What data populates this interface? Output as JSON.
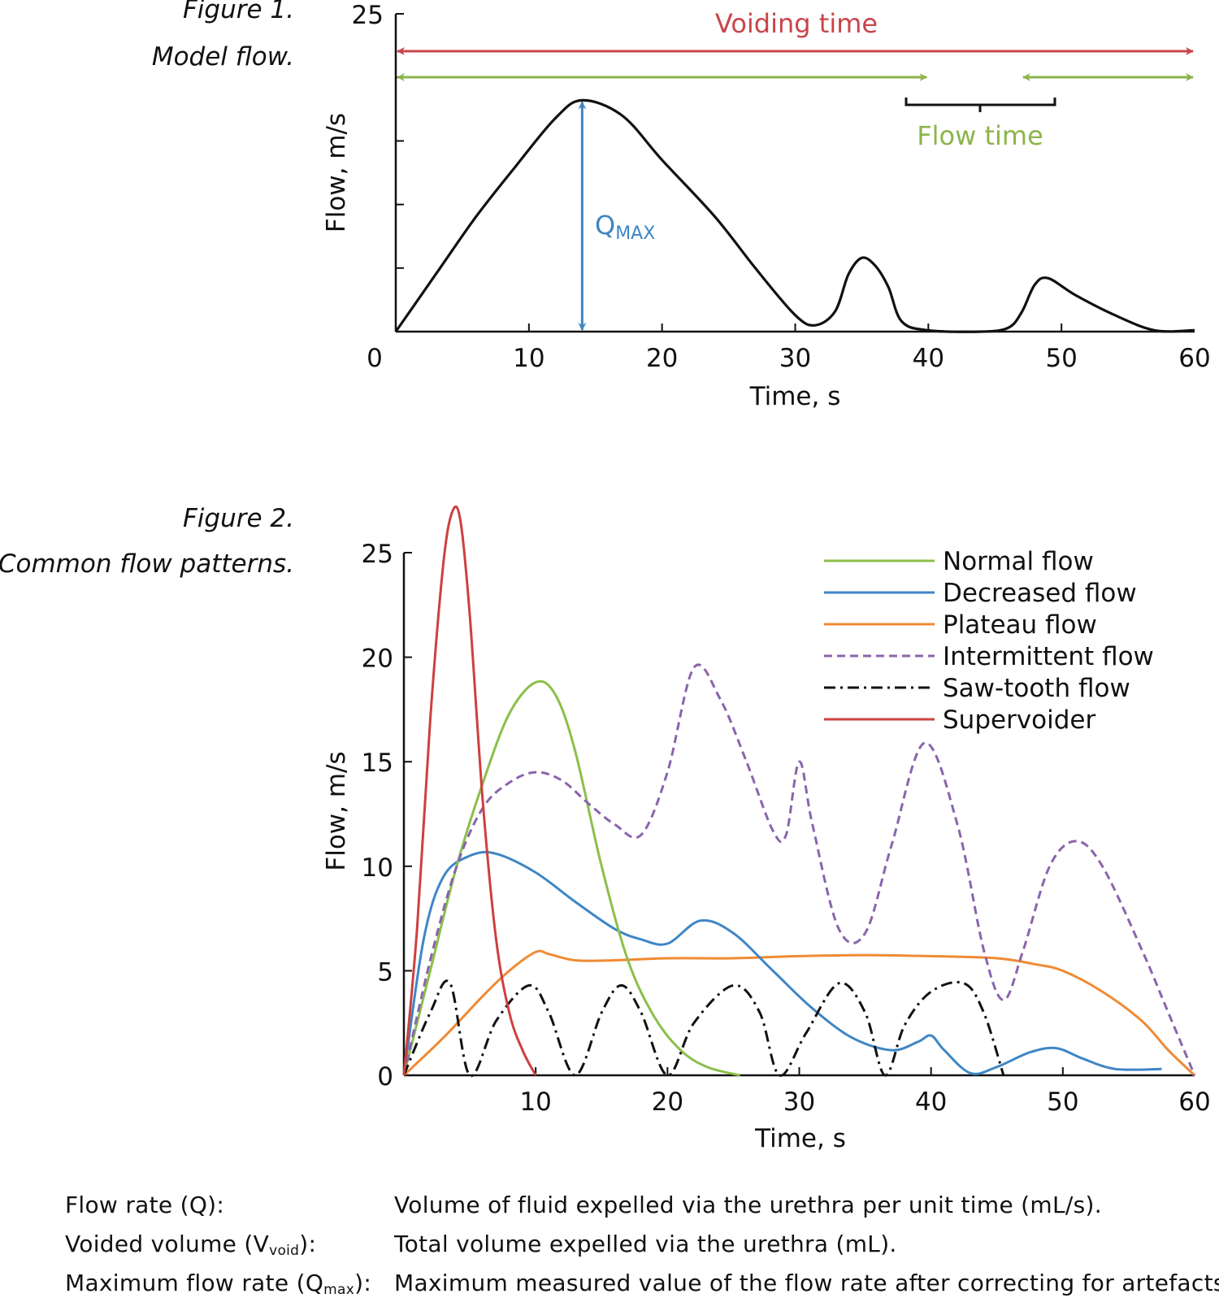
{
  "figure1": {
    "caption_number": "Figure 1.",
    "caption_title": "Model flow.",
    "chart_data": {
      "type": "line",
      "xlabel": "Time, s",
      "ylabel": "Flow, m/s",
      "xlim": [
        0,
        60
      ],
      "ylim": [
        0,
        25
      ],
      "x_ticks": [
        "0",
        "10",
        "20",
        "30",
        "40",
        "50",
        "60"
      ],
      "y_ticks": [
        "25"
      ],
      "series": [
        {
          "x": [
            0,
            3,
            6,
            9,
            12,
            14,
            17,
            20,
            24,
            27,
            30,
            31.5,
            33,
            34,
            35,
            36,
            37,
            38,
            40,
            44,
            46,
            47,
            48,
            49,
            51,
            54,
            57,
            60
          ],
          "y": [
            0,
            4.5,
            9,
            13,
            16.8,
            18.2,
            17,
            13.5,
            9,
            5,
            1.3,
            0.5,
            1.6,
            4.5,
            5.8,
            5.2,
            3.5,
            0.8,
            0.1,
            0,
            0.3,
            1.5,
            3.7,
            4.2,
            2.9,
            1.3,
            0.1,
            0.1
          ]
        }
      ],
      "annotations": [
        {
          "label": "Voiding time",
          "x_start": 0,
          "x_end": 60,
          "color": "#c8454a"
        },
        {
          "label": "Flow time",
          "segments": [
            [
              0,
              40
            ],
            [
              47,
              60
            ]
          ],
          "color": "#8cb44a"
        },
        {
          "label": "Q",
          "label_sub": "MAX",
          "x": 14,
          "y_start": 0,
          "y_end": 18.2,
          "color": "#3e86c5"
        }
      ]
    }
  },
  "figure2": {
    "caption_number": "Figure 2.",
    "caption_title": "Common flow patterns.",
    "chart_data": {
      "type": "line",
      "xlabel": "Time, s",
      "ylabel": "Flow, m/s",
      "xlim": [
        0,
        60
      ],
      "ylim": [
        0,
        25
      ],
      "x_ticks": [
        "10",
        "20",
        "30",
        "40",
        "50",
        "60"
      ],
      "y_ticks": [
        "0",
        "5",
        "10",
        "15",
        "20",
        "25"
      ],
      "legend_position": "top-right",
      "series": [
        {
          "name": "Normal flow",
          "color": "#8cbf4a",
          "dash": "solid",
          "x": [
            0,
            2,
            4,
            6,
            8,
            10,
            11.5,
            13,
            15,
            17,
            19,
            21,
            23,
            25.5
          ],
          "y": [
            0,
            5,
            10,
            14,
            17.3,
            18.8,
            18.2,
            15.5,
            10,
            5.5,
            2.8,
            1.2,
            0.4,
            0
          ]
        },
        {
          "name": "Decreased flow",
          "color": "#3f86c6",
          "dash": "solid",
          "x": [
            0,
            1.5,
            3,
            5,
            7,
            10,
            13,
            16,
            18,
            20,
            22.5,
            25,
            28,
            31,
            34,
            37,
            39,
            40,
            41,
            43,
            45,
            47.5,
            49.5,
            51.5,
            54,
            57.5
          ],
          "y": [
            0,
            6.5,
            9.5,
            10.5,
            10.6,
            9.7,
            8.3,
            7,
            6.5,
            6.3,
            7.4,
            6.8,
            5,
            3.2,
            1.8,
            1.2,
            1.6,
            1.9,
            1.2,
            0.1,
            0.4,
            1.1,
            1.3,
            0.8,
            0.3,
            0.3
          ]
        },
        {
          "name": "Plateau flow",
          "color": "#f08a34",
          "dash": "solid",
          "x": [
            0,
            3,
            6,
            8,
            10,
            11,
            13,
            16,
            20,
            25,
            30,
            35,
            40,
            45,
            48,
            50,
            53,
            56,
            58,
            60
          ],
          "y": [
            0,
            1.8,
            3.8,
            5,
            5.9,
            5.8,
            5.5,
            5.5,
            5.6,
            5.6,
            5.7,
            5.75,
            5.7,
            5.6,
            5.3,
            5,
            4,
            2.6,
            1.2,
            0
          ]
        },
        {
          "name": "Intermittent flow",
          "color": "#8a64ac",
          "dash": "dashed",
          "x": [
            0,
            2,
            4,
            6,
            8,
            10,
            12,
            14,
            16,
            18,
            20,
            22,
            24,
            26,
            28,
            29,
            30,
            31,
            33,
            35,
            37,
            39.5,
            42,
            44,
            45.5,
            47,
            49,
            51,
            53,
            56,
            58,
            60
          ],
          "y": [
            0,
            5.5,
            10,
            12.8,
            14,
            14.5,
            14.1,
            13,
            12,
            11.5,
            14.5,
            19.5,
            18,
            15,
            11.7,
            11.5,
            15,
            12,
            7,
            6.8,
            11,
            15.9,
            12,
            6,
            3.6,
            6,
            10,
            11.2,
            10,
            6,
            3,
            0
          ]
        },
        {
          "name": "Saw-tooth flow",
          "color": "#111111",
          "dash": "dashdot",
          "x": [
            0,
            2,
            3.5,
            5,
            7,
            9.5,
            11,
            13,
            15,
            16.5,
            18,
            20,
            22,
            25,
            27,
            28.5,
            30.5,
            33,
            35,
            36.5,
            38,
            40,
            42.5,
            44,
            45.5
          ],
          "y": [
            0,
            3,
            4.4,
            0,
            2.6,
            4.3,
            3,
            0,
            3,
            4.3,
            3,
            0,
            2.5,
            4.3,
            3,
            0,
            2,
            4.4,
            3,
            0,
            2.4,
            4,
            4.4,
            3,
            0
          ]
        },
        {
          "name": "Supervoider",
          "color": "#cd4040",
          "dash": "solid",
          "x": [
            0,
            1,
            2,
            3,
            3.7,
            4.3,
            5,
            6,
            7,
            8,
            9,
            10
          ],
          "y": [
            0,
            7,
            17,
            24.5,
            27,
            26.5,
            22,
            13,
            6.5,
            3,
            1.2,
            0
          ]
        }
      ]
    }
  },
  "definitions": [
    {
      "term": "Flow rate (Q):",
      "term_sub": "",
      "term_tail": "",
      "desc": "Volume of fluid expelled via the urethra per unit time (mL/s)."
    },
    {
      "term": "Voided volume (V",
      "term_sub": "void",
      "term_tail": "):",
      "desc": "Total volume expelled via the urethra (mL)."
    },
    {
      "term": "Maximum flow rate (Q",
      "term_sub": "max",
      "term_tail": "):",
      "desc": "Maximum measured value of the flow rate after correcting for artefacts."
    }
  ]
}
